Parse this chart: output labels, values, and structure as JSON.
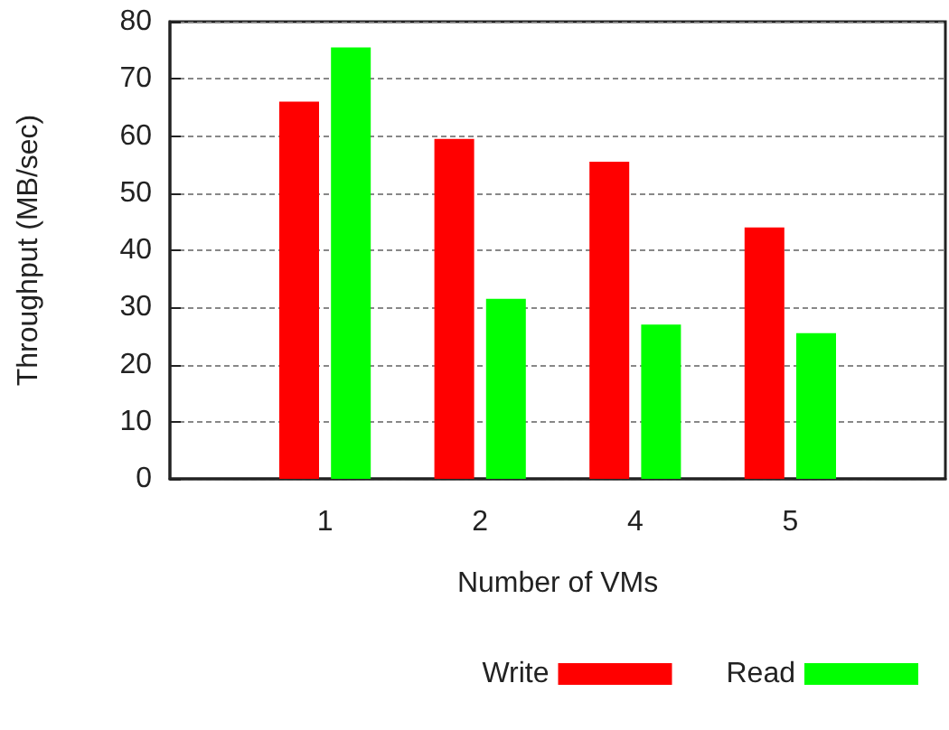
{
  "chart_data": {
    "type": "bar",
    "categories": [
      "1",
      "2",
      "4",
      "5"
    ],
    "series": [
      {
        "name": "Write",
        "color": "#ff0000",
        "values": [
          66,
          59.5,
          55.5,
          44
        ]
      },
      {
        "name": "Read",
        "color": "#00ff00",
        "values": [
          75.5,
          31.5,
          27,
          25.5
        ]
      }
    ],
    "xlabel": "Number of VMs",
    "ylabel": "Throughput (MB/sec)",
    "ylim": [
      0,
      80
    ],
    "yticks": [
      0,
      10,
      20,
      30,
      40,
      50,
      60,
      70,
      80
    ],
    "grid": "y",
    "legend": "bottom"
  }
}
